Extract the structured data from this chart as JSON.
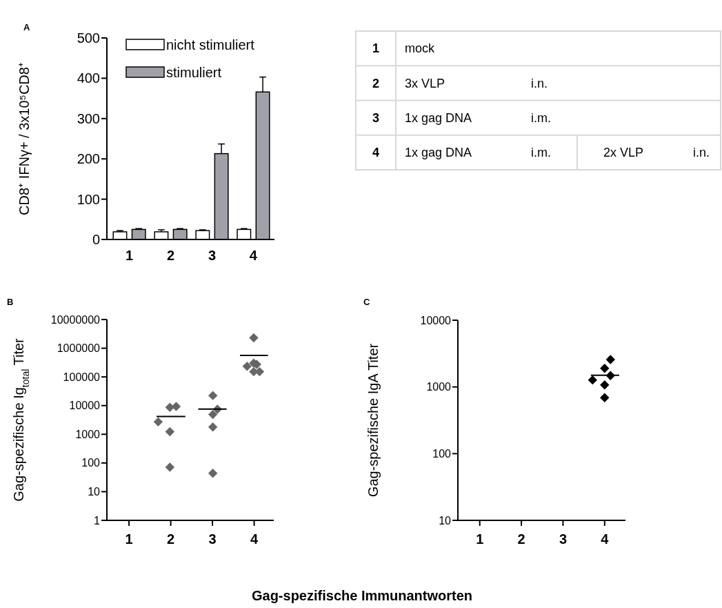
{
  "chart_data": [
    {
      "type": "bar",
      "title": "A",
      "cell_labels": [
        [
          "1",
          "mock"
        ],
        [
          "2",
          "3x VLP",
          "i.n."
        ],
        [
          "3",
          "1x gag DNA",
          "i.m."
        ],
        [
          "4",
          "1x gag DNA",
          "i.m.",
          "2x VLP",
          "i.n."
        ]
      ],
      "categories": [
        "1",
        "2",
        "3",
        "4"
      ],
      "ylabel": "CD8⁺ IFNγ+ / 3x10⁵CD8⁺",
      "ylim": [
        0,
        500
      ],
      "yticks": [
        0,
        100,
        200,
        300,
        400,
        500
      ],
      "legend": "top",
      "grid": false,
      "series": [
        {
          "name": "nicht stimuliert",
          "color": "#ffffff",
          "values": [
            19,
            19,
            22,
            25
          ],
          "errors": [
            [
              19,
              22
            ],
            [
              19,
              24
            ],
            [
              22,
              24
            ],
            [
              25,
              27
            ]
          ]
        },
        {
          "name": "stimuliert",
          "color": "#a0a0a8",
          "values": [
            25,
            25,
            213,
            366
          ],
          "errors": [
            [
              25,
              27
            ],
            [
              25,
              27
            ],
            [
              213,
              237
            ],
            [
              366,
              403
            ]
          ]
        }
      ]
    },
    {
      "type": "scatter",
      "title": "B",
      "ylabel": "Gag-spezifische Ig$_{total}$ Titer",
      "log": "y",
      "xlim": [
        0.47,
        4.47
      ],
      "xticks": [
        1,
        2,
        3,
        4
      ],
      "ylim": [
        1,
        10000000
      ],
      "yticks": [
        1,
        10,
        100,
        1000,
        10000,
        100000,
        1000000,
        10000000
      ],
      "grid": false,
      "series": [
        {
          "marker": "diamond",
          "color": "#666666",
          "x": [
            1.7,
            1.98,
            2.13,
            1.98,
            1.98,
            3.01,
            3.12,
            3.01,
            3.01,
            3.01,
            3.99,
            3.83,
            3.99,
            4.06,
            3.99,
            4.13
          ],
          "values": [
            2700,
            8700,
            9300,
            1230,
            71,
            22400,
            7450,
            4900,
            1800,
            44,
            2300000,
            235000,
            300000,
            274000,
            152000,
            152000
          ]
        },
        {
          "type": "line",
          "color": "#000000",
          "x": [
            1.66,
            2.35
          ],
          "values": [
            4200,
            4200
          ]
        },
        {
          "type": "line",
          "color": "#000000",
          "x": [
            2.66,
            3.34
          ],
          "values": [
            7600,
            7600
          ]
        },
        {
          "type": "line",
          "color": "#000000",
          "x": [
            3.66,
            4.33
          ],
          "values": [
            560000,
            560000
          ]
        }
      ]
    },
    {
      "type": "scatter",
      "title": "C",
      "ylabel": "Gag-spezifische IgA Titer",
      "log": "y",
      "xlim": [
        0.475,
        4.5
      ],
      "xticks": [
        1,
        2,
        3,
        4
      ],
      "ylim": [
        10,
        10000
      ],
      "yticks": [
        10,
        100,
        1000,
        10000
      ],
      "grid": false,
      "series": [
        {
          "marker": "diamond",
          "color": "#000000",
          "x": [
            3.71,
            4,
            4.14,
            4.14,
            4,
            4
          ],
          "values": [
            1270,
            1900,
            2570,
            1480,
            1070,
            690
          ]
        },
        {
          "type": "line",
          "color": "#000000",
          "x": [
            3.67,
            4.35
          ],
          "values": [
            1500,
            1500
          ]
        }
      ]
    },
    {
      "type": "other",
      "title": "Gag-spezifische Immunantworten"
    }
  ]
}
